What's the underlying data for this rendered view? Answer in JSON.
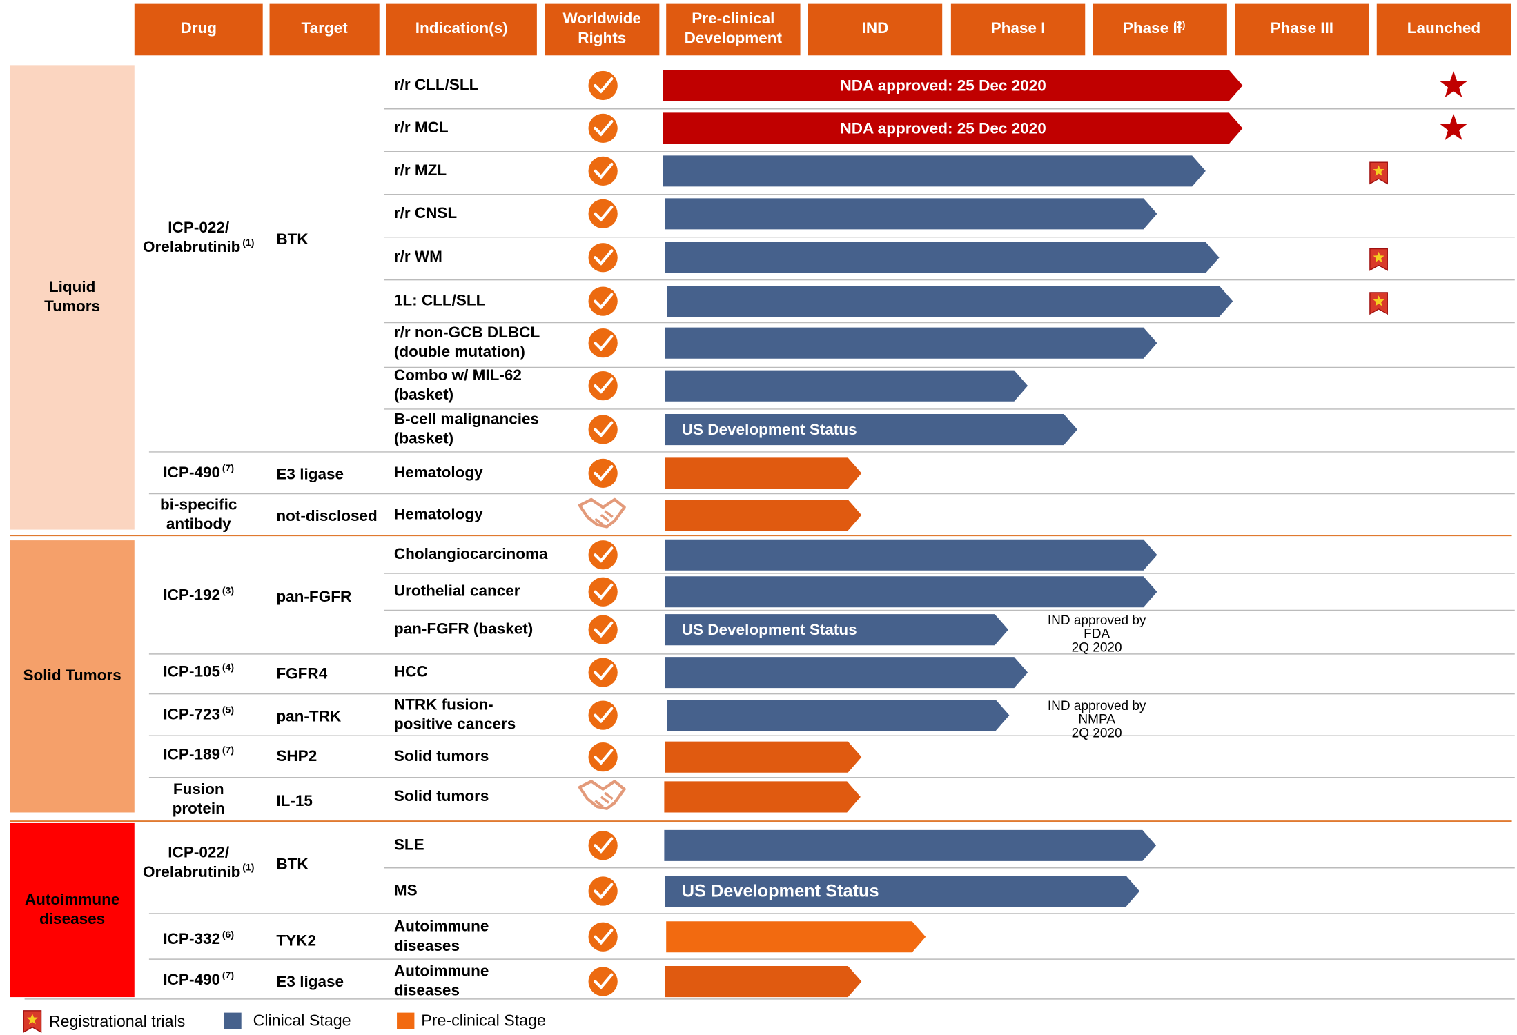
{
  "header": {
    "columns": [
      "Drug",
      "Target",
      [
        "Indication(s)"
      ],
      [
        "Worldwide",
        "Rights"
      ],
      [
        "Pre-clinical",
        "Development"
      ],
      [
        "IND"
      ],
      [
        "Phase I"
      ],
      [
        "Phase II"
      ],
      [
        "Phase III"
      ],
      [
        "Launched"
      ]
    ],
    "phase2_note": "(2)"
  },
  "groups": [
    [
      "Liquid",
      "Tumors"
    ],
    [
      "Solid Tumors"
    ],
    [
      "Autoimmune",
      "diseases"
    ]
  ],
  "drugs": [
    {
      "name": [
        "ICP-022/",
        "Orelabrutinib"
      ],
      "note": "(1)",
      "target": "BTK"
    },
    {
      "name": [
        "ICP-490"
      ],
      "note": "(7)",
      "target": "E3 ligase"
    },
    {
      "name": [
        "bi-specific",
        "antibody"
      ],
      "target": "not-disclosed"
    },
    {
      "name": [
        "ICP-192"
      ],
      "note": "(3)",
      "target": "pan-FGFR"
    },
    {
      "name": [
        "ICP-105"
      ],
      "note": "(4)",
      "target": "FGFR4"
    },
    {
      "name": [
        "ICP-723"
      ],
      "note": "(5)",
      "target": "pan-TRK"
    },
    {
      "name": [
        "ICP-189"
      ],
      "note": "(7)",
      "target": "SHP2"
    },
    {
      "name": [
        "Fusion",
        "protein"
      ],
      "target": "IL-15"
    },
    {
      "name": [
        "ICP-022/",
        "Orelabrutinib"
      ],
      "note": "(1)",
      "target": "BTK"
    },
    {
      "name": [
        "ICP-332"
      ],
      "note": "(6)",
      "target": "TYK2"
    },
    {
      "name": [
        "ICP-490"
      ],
      "note": "(7)",
      "target": "E3 ligase"
    }
  ],
  "rows": [
    {
      "indication": [
        "r/r CLL/SLL"
      ],
      "bar_label": "NDA approved: 25 Dec 2020"
    },
    {
      "indication": [
        "r/r MCL"
      ],
      "bar_label": "NDA approved: 25 Dec 2020"
    },
    {
      "indication": [
        "r/r MZL"
      ]
    },
    {
      "indication": [
        "r/r CNSL"
      ]
    },
    {
      "indication": [
        "r/r WM"
      ]
    },
    {
      "indication": [
        "1L: CLL/SLL"
      ]
    },
    {
      "indication": [
        "r/r non-GCB DLBCL",
        "(double mutation)"
      ]
    },
    {
      "indication": [
        "Combo w/ MIL-62",
        "(basket)"
      ]
    },
    {
      "indication": [
        "B-cell malignancies",
        "(basket)"
      ],
      "bar_label": "US Development Status"
    },
    {
      "indication": [
        "Hematology"
      ]
    },
    {
      "indication": [
        "Hematology"
      ]
    },
    {
      "indication": [
        "Cholangiocarcinoma"
      ]
    },
    {
      "indication": [
        "Urothelial cancer"
      ]
    },
    {
      "indication": [
        "pan-FGFR (basket)"
      ],
      "bar_label": "US Development Status",
      "note": [
        "IND approved by",
        "FDA",
        "2Q 2020"
      ]
    },
    {
      "indication": [
        "HCC"
      ]
    },
    {
      "indication": [
        "NTRK fusion-",
        "positive cancers"
      ],
      "note": [
        "IND approved by",
        "NMPA",
        "2Q 2020"
      ]
    },
    {
      "indication": [
        "Solid tumors"
      ]
    },
    {
      "indication": [
        "Solid tumors"
      ]
    },
    {
      "indication": [
        "SLE"
      ]
    },
    {
      "indication": [
        "MS"
      ],
      "bar_label": "US Development Status"
    },
    {
      "indication": [
        "Autoimmune",
        "diseases"
      ]
    },
    {
      "indication": [
        "Autoimmune",
        "diseases"
      ]
    }
  ],
  "legend": [
    "Registrational trials",
    "Clinical Stage",
    "Pre-clinical Stage"
  ]
}
